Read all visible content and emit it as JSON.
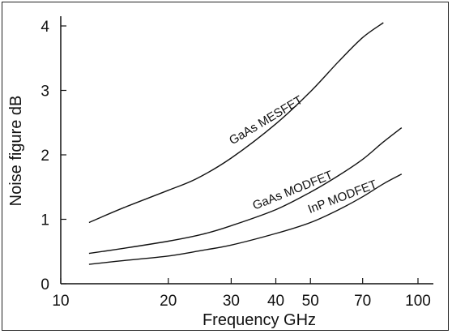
{
  "chart_data": {
    "type": "line",
    "xlabel": "Frequency  GHz",
    "ylabel": "Noise figure dB",
    "x_scale": "log",
    "xlim": [
      10,
      100
    ],
    "ylim": [
      0,
      4
    ],
    "x_ticks": [
      10,
      20,
      30,
      40,
      50,
      70,
      100
    ],
    "y_ticks": [
      0,
      1,
      2,
      3,
      4
    ],
    "grid": false,
    "legend": "none",
    "series": [
      {
        "name": "GaAs MESFET",
        "x": [
          12,
          15,
          20,
          24,
          30,
          40,
          50,
          60,
          70,
          80
        ],
        "y": [
          0.95,
          1.18,
          1.45,
          1.63,
          1.95,
          2.48,
          2.98,
          3.45,
          3.82,
          4.05
        ]
      },
      {
        "name": "GaAs MODFET",
        "x": [
          12,
          15,
          20,
          25,
          30,
          40,
          50,
          60,
          70,
          80,
          90
        ],
        "y": [
          0.47,
          0.55,
          0.66,
          0.77,
          0.9,
          1.15,
          1.42,
          1.68,
          1.93,
          2.2,
          2.42
        ]
      },
      {
        "name": "InP MODFET",
        "x": [
          12,
          15,
          20,
          25,
          30,
          40,
          50,
          60,
          70,
          80,
          90
        ],
        "y": [
          0.3,
          0.36,
          0.43,
          0.52,
          0.6,
          0.78,
          0.95,
          1.15,
          1.35,
          1.55,
          1.7
        ]
      }
    ]
  }
}
